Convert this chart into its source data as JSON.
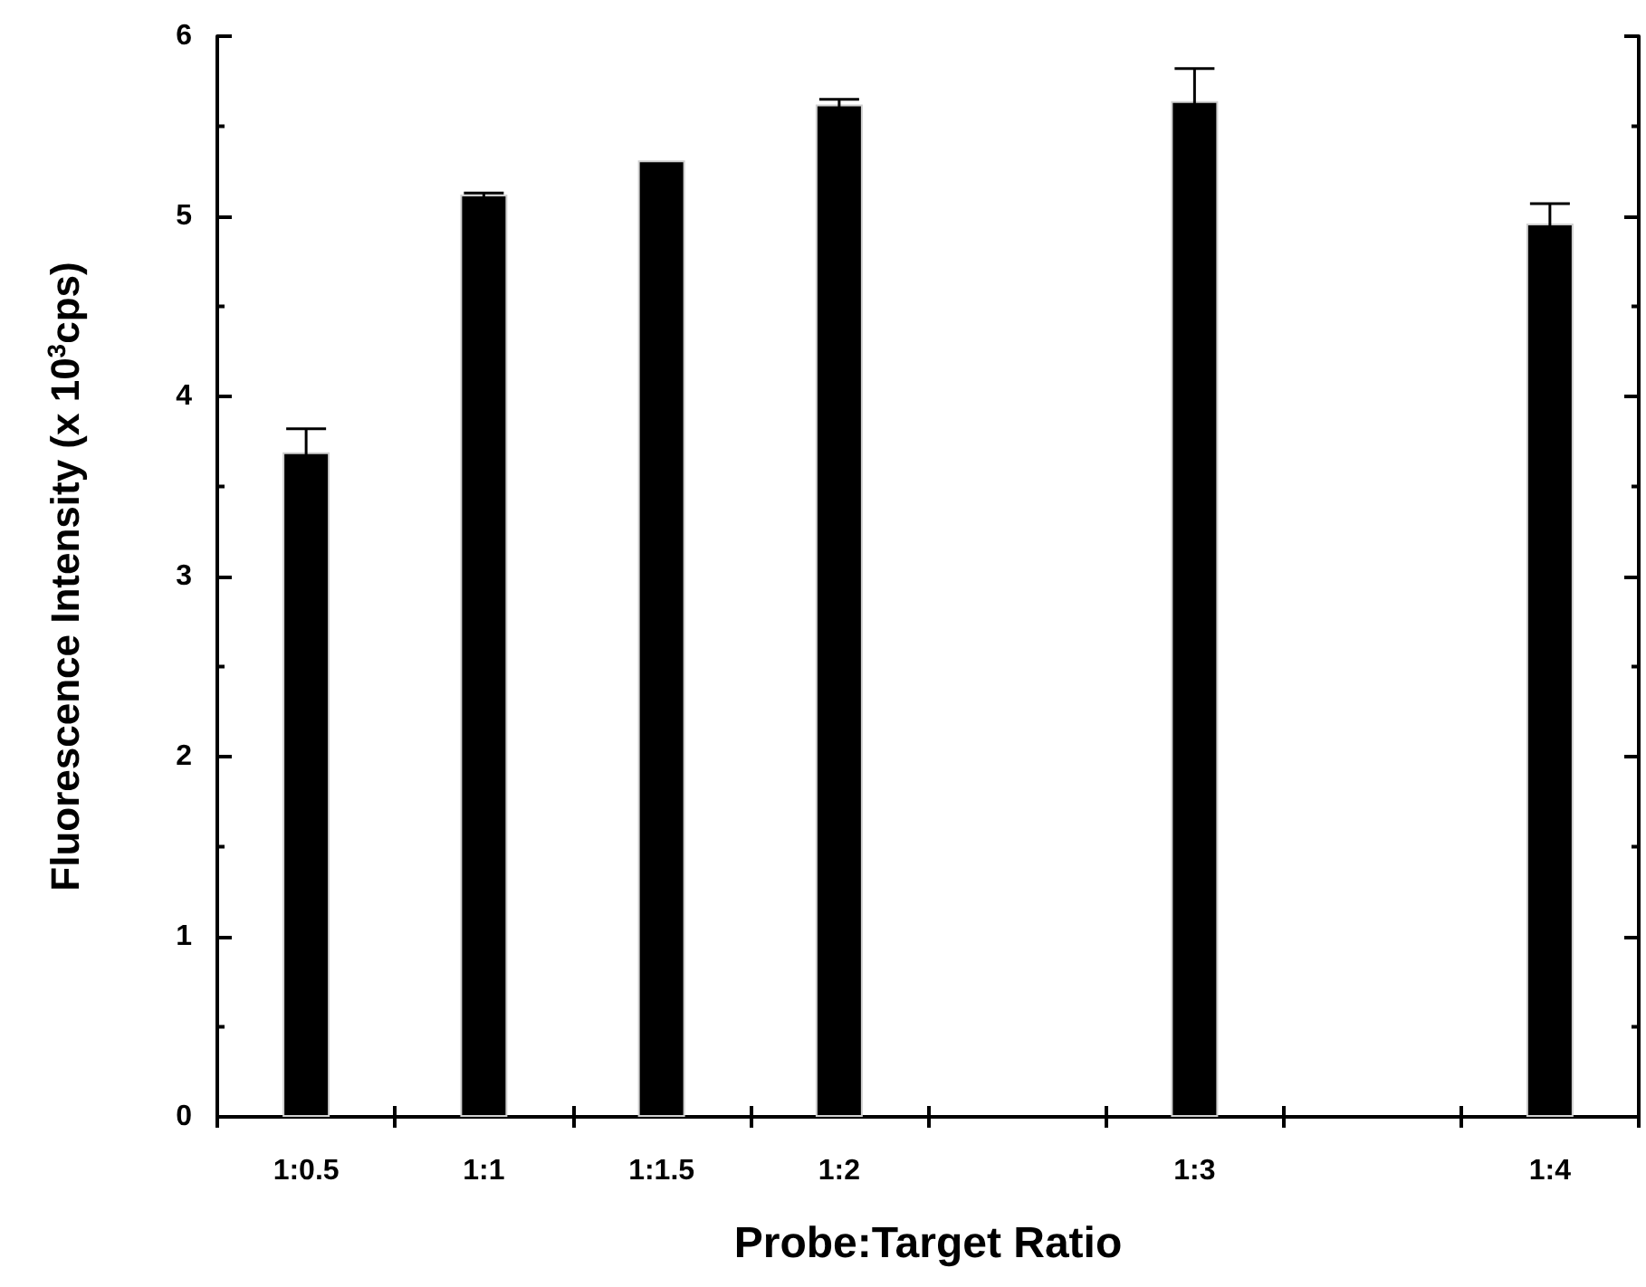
{
  "chart_data": {
    "type": "bar",
    "xlabel": "Probe:Target Ratio",
    "ylabel": "Fluorescence Intensity (x 10$^{3}$cps)",
    "categories": [
      "1:0.5",
      "1:1",
      "1:1.5",
      "1:2",
      null,
      "1:3",
      null,
      "1:4"
    ],
    "values": [
      3.69,
      5.12,
      5.31,
      5.62,
      null,
      5.64,
      null,
      4.96
    ],
    "errors": [
      0.13,
      0.01,
      null,
      0.03,
      null,
      0.18,
      null,
      0.11
    ],
    "color": "#000000",
    "ylim": [
      0,
      6
    ],
    "yticks": [
      0,
      1,
      2,
      3,
      4,
      5,
      6
    ]
  }
}
